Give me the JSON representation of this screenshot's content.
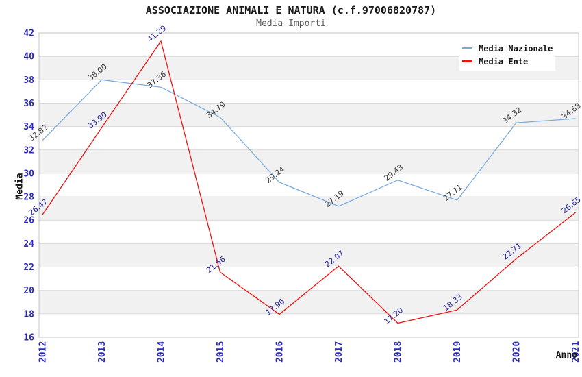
{
  "header": {
    "title": "ASSOCIAZIONE ANIMALI E NATURA (c.f.97006820787)",
    "subtitle": "Media Importi"
  },
  "chart_data": {
    "type": "line",
    "categories": [
      "2012",
      "2013",
      "2014",
      "2015",
      "2016",
      "2017",
      "2018",
      "2019",
      "2020",
      "2021"
    ],
    "series": [
      {
        "name": "Media Nazionale",
        "color": "#7aabde",
        "label_color": "#3a3a3a",
        "values": [
          32.82,
          38.0,
          37.36,
          34.79,
          29.24,
          27.19,
          29.43,
          27.71,
          34.32,
          34.68
        ],
        "labels": [
          "32.82",
          "38.00",
          "37.36",
          "34.79",
          "29.24",
          "27.19",
          "29.43",
          "27.71",
          "34.32",
          "34.68"
        ]
      },
      {
        "name": "Media Ente",
        "color": "#ee1111",
        "label_color": "#22229c",
        "values": [
          26.47,
          33.9,
          41.29,
          21.56,
          17.96,
          22.07,
          17.2,
          18.33,
          22.71,
          26.65
        ],
        "labels": [
          "26.47",
          "33.90",
          "41.29",
          "21.56",
          "17.96",
          "22.07",
          "17.20",
          "18.33",
          "22.71",
          "26.65"
        ]
      }
    ],
    "xlabel": "Anno",
    "ylabel": "Media",
    "ylim": [
      16,
      42
    ],
    "y_ticks": [
      16,
      18,
      20,
      22,
      24,
      26,
      28,
      30,
      32,
      34,
      36,
      38,
      40,
      42
    ],
    "grid": true,
    "legend_position": "top-right",
    "colors": {
      "band": "#f1f1f1",
      "grid": "#d9d9d9",
      "border": "#c6c6c6",
      "tick_label": "#2b2bc4",
      "axis_title": "#111111"
    }
  }
}
